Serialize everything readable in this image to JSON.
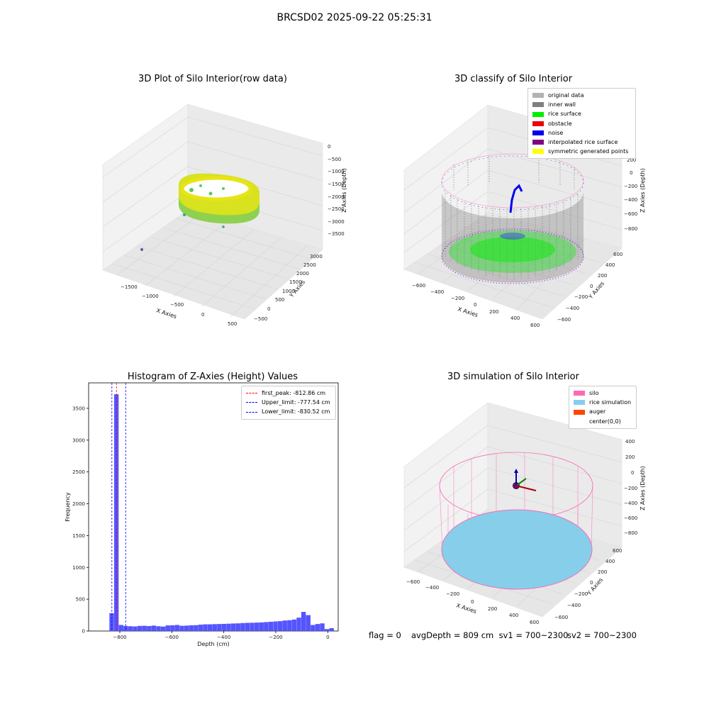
{
  "figure": {
    "suptitle": "BRCSD02 2025-09-22 05:25:31"
  },
  "colors": {
    "original": "#b3b3b3",
    "wall": "#808080",
    "rice": "#00ee00",
    "obstacle": "#ee0000",
    "noise": "#0000ee",
    "interp": "#800080",
    "sym": "#ffff00",
    "silo": "#ff69b4",
    "rice_sim": "#87ceeb",
    "auger": "#ff4500",
    "hist_bar": "#4c4cff",
    "peak": "#ff0000",
    "limit": "#0000ff"
  },
  "panels": {
    "raw": {
      "title": "3D Plot of Silo Interior(row data)",
      "xlabel": "X Axies",
      "ylabel": "Y Axies",
      "zlabel": "Z Axies (Depth)",
      "xticks": [
        "−1500",
        "−1000",
        "−500",
        "0",
        "500"
      ],
      "yticks": [
        "−500",
        "0",
        "500",
        "1000",
        "1500",
        "2000",
        "2500",
        "3000"
      ],
      "zticks": [
        "0",
        "−500",
        "−1000",
        "−1500",
        "−2000",
        "−2500",
        "−3000",
        "−3500"
      ]
    },
    "classify": {
      "title": "3D classify of Silo Interior",
      "xlabel": "X Axies",
      "ylabel": "Y Axies",
      "zlabel": "Z Axies (Depth)",
      "xticks": [
        "−600",
        "−400",
        "−200",
        "0",
        "200",
        "400",
        "600"
      ],
      "yticks": [
        "−600",
        "−400",
        "−200",
        "0",
        "200",
        "400",
        "600"
      ],
      "zticks": [
        "200",
        "0",
        "−200",
        "−400",
        "−600",
        "−800"
      ],
      "legend": [
        "original data",
        "inner wall",
        "rice surface",
        "obstacle",
        "noise",
        "interpolated rice surface",
        "symmetric generated points"
      ]
    },
    "simulation": {
      "title": "3D simulation of Silo Interior",
      "xlabel": "X Axies",
      "ylabel": "Y Axies",
      "zlabel": "Z Axies (Depth)",
      "xticks": [
        "−600",
        "−400",
        "−200",
        "0",
        "200",
        "400",
        "600"
      ],
      "yticks": [
        "−600",
        "−400",
        "−200",
        "0",
        "200",
        "400",
        "600"
      ],
      "zticks": [
        "400",
        "200",
        "0",
        "−200",
        "−400",
        "−600",
        "−800"
      ],
      "legend": [
        "silo",
        "rice simulation",
        "auger",
        "center(0,0)"
      ]
    }
  },
  "chart_data": {
    "type": "bar",
    "title": "Histogram of Z-Axies (Height) Values",
    "xlabel": "Depth (cm)",
    "ylabel": "Frequency",
    "xlim": [
      -920,
      40
    ],
    "ylim": [
      0,
      3900
    ],
    "xticks": [
      -800,
      -600,
      -400,
      -200,
      0
    ],
    "yticks": [
      0,
      500,
      1000,
      1500,
      2000,
      2500,
      3000,
      3500
    ],
    "bin_width": 18,
    "bin_start": -840,
    "values": [
      280,
      3720,
      95,
      80,
      75,
      72,
      80,
      82,
      78,
      85,
      75,
      70,
      88,
      90,
      95,
      82,
      85,
      90,
      92,
      100,
      105,
      105,
      108,
      110,
      112,
      115,
      118,
      120,
      125,
      128,
      130,
      132,
      135,
      140,
      145,
      150,
      155,
      165,
      170,
      180,
      210,
      300,
      250,
      95,
      110,
      120,
      30,
      45
    ],
    "lines": [
      {
        "label": "first_peak: -812.86 cm",
        "x": -812.86,
        "color": "#ff0000"
      },
      {
        "label": "Upper_limit: -777.54 cm",
        "x": -777.54,
        "color": "#0000ff"
      },
      {
        "label": "Lower_limit: -830.52 cm",
        "x": -830.52,
        "color": "#0000ff"
      }
    ],
    "legend_position": "top-right",
    "grid": false
  },
  "footer": {
    "flag": "flag = 0",
    "avg": "avgDepth = 809 cm  sv1 = 700~2300",
    "sv2": "sv2 = 700~2300"
  }
}
